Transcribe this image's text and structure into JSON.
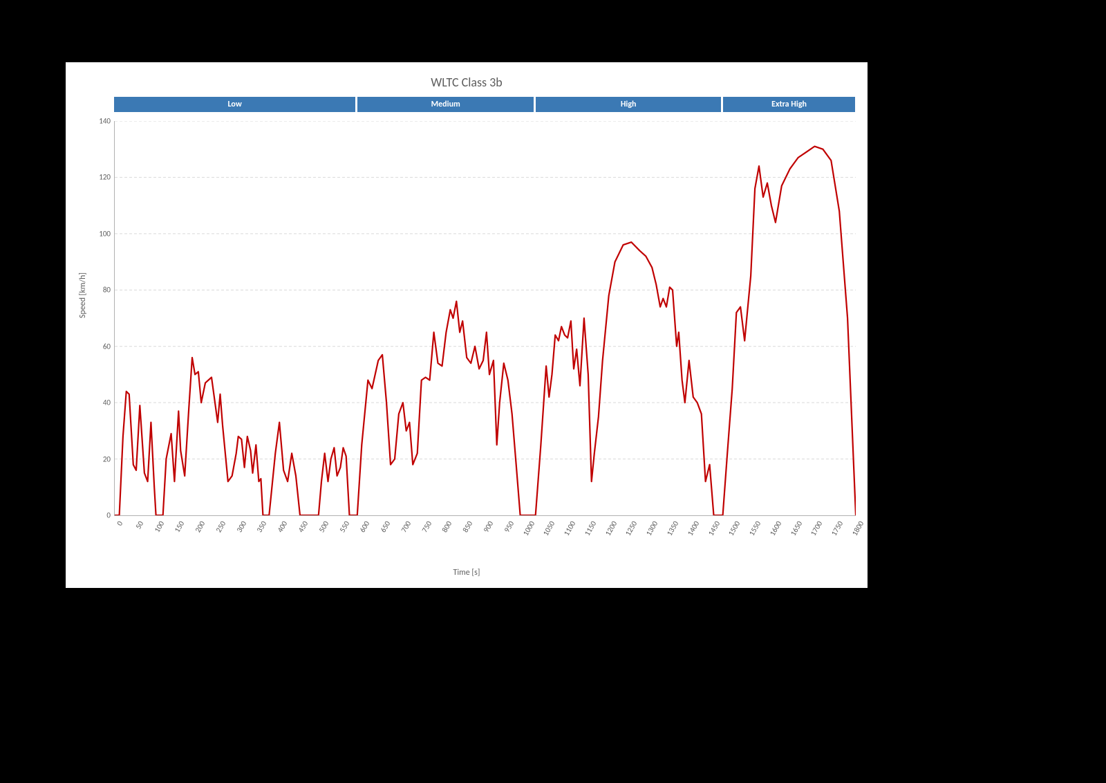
{
  "chart": {
    "type": "line",
    "title": "WLTC Class 3b",
    "title_fontsize": 18,
    "title_color": "#5d5d5d",
    "background_color": "#000000",
    "card_color": "#ffffff",
    "xlabel": "Time [s]",
    "ylabel": "Speed [km/h]",
    "label_fontsize": 12,
    "tick_fontsize": 11,
    "tick_color": "#5d5d5d",
    "axis_color": "#b0b0b0",
    "grid_color": "#d9d9d9",
    "grid_dash": "4 3",
    "xlim": [
      0,
      1800
    ],
    "ylim": [
      0,
      140
    ],
    "xtick_step": 50,
    "ytick_step": 20,
    "xtick_rotation_deg": -60,
    "line_color": "#c00000",
    "line_width": 2.2,
    "phase_color": "#3b79b4",
    "phase_text_color": "#ffffff",
    "phase_fontsize": 12,
    "phases": [
      {
        "label": "Low",
        "start": 0,
        "end": 589
      },
      {
        "label": "Medium",
        "start": 589,
        "end": 1022
      },
      {
        "label": "High",
        "start": 1022,
        "end": 1477
      },
      {
        "label": "Extra High",
        "start": 1477,
        "end": 1800
      }
    ],
    "series": {
      "t": [
        0,
        11,
        20,
        28,
        35,
        45,
        52,
        61,
        72,
        80,
        88,
        96,
        100,
        117,
        125,
        137,
        145,
        155,
        160,
        170,
        180,
        188,
        195,
        203,
        210,
        220,
        235,
        250,
        256,
        262,
        275,
        285,
        295,
        300,
        308,
        315,
        322,
        330,
        335,
        343,
        350,
        355,
        360,
        375,
        390,
        400,
        410,
        420,
        430,
        440,
        450,
        470,
        495,
        502,
        510,
        518,
        525,
        533,
        540,
        548,
        555,
        562,
        570,
        589,
        600,
        615,
        625,
        640,
        650,
        660,
        670,
        680,
        690,
        700,
        708,
        716,
        724,
        735,
        745,
        755,
        765,
        775,
        785,
        795,
        805,
        815,
        822,
        830,
        838,
        845,
        855,
        865,
        875,
        885,
        895,
        903,
        910,
        920,
        928,
        935,
        945,
        955,
        965,
        975,
        985,
        995,
        1005,
        1022,
        1035,
        1048,
        1055,
        1062,
        1070,
        1078,
        1085,
        1093,
        1100,
        1108,
        1115,
        1122,
        1130,
        1140,
        1150,
        1158,
        1165,
        1175,
        1185,
        1200,
        1215,
        1235,
        1255,
        1275,
        1290,
        1305,
        1315,
        1325,
        1332,
        1340,
        1348,
        1355,
        1365,
        1370,
        1378,
        1385,
        1395,
        1405,
        1415,
        1425,
        1435,
        1445,
        1455,
        1465,
        1477,
        1488,
        1500,
        1510,
        1520,
        1530,
        1545,
        1555,
        1565,
        1575,
        1585,
        1595,
        1605,
        1620,
        1640,
        1660,
        1680,
        1700,
        1720,
        1740,
        1760,
        1780,
        1800
      ],
      "v": [
        0,
        0,
        28,
        44,
        43,
        18,
        16,
        39,
        15,
        12,
        33,
        10,
        0,
        0,
        20,
        29,
        12,
        37,
        23,
        14,
        38,
        56,
        50,
        51,
        40,
        47,
        49,
        33,
        43,
        32,
        12,
        14,
        22,
        28,
        27,
        17,
        28,
        23,
        15,
        25,
        12,
        13,
        0,
        0,
        22,
        33,
        16,
        12,
        22,
        14,
        0,
        0,
        0,
        12,
        22,
        12,
        20,
        24,
        14,
        17,
        24,
        21,
        0,
        0,
        25,
        48,
        45,
        55,
        57,
        40,
        18,
        20,
        36,
        40,
        30,
        33,
        18,
        22,
        48,
        49,
        48,
        65,
        54,
        53,
        65,
        73,
        70,
        76,
        65,
        69,
        56,
        54,
        60,
        52,
        55,
        65,
        50,
        55,
        25,
        40,
        54,
        48,
        36,
        18,
        0,
        0,
        0,
        0,
        25,
        53,
        42,
        50,
        64,
        62,
        67,
        64,
        63,
        69,
        52,
        59,
        46,
        70,
        50,
        12,
        22,
        35,
        55,
        78,
        90,
        96,
        97,
        94,
        92,
        88,
        82,
        74,
        77,
        74,
        81,
        80,
        60,
        65,
        48,
        40,
        55,
        42,
        40,
        36,
        12,
        18,
        0,
        0,
        0,
        22,
        45,
        72,
        74,
        62,
        85,
        116,
        124,
        113,
        118,
        110,
        104,
        117,
        123,
        127,
        129,
        131,
        130,
        126,
        108,
        70,
        0
      ]
    }
  }
}
